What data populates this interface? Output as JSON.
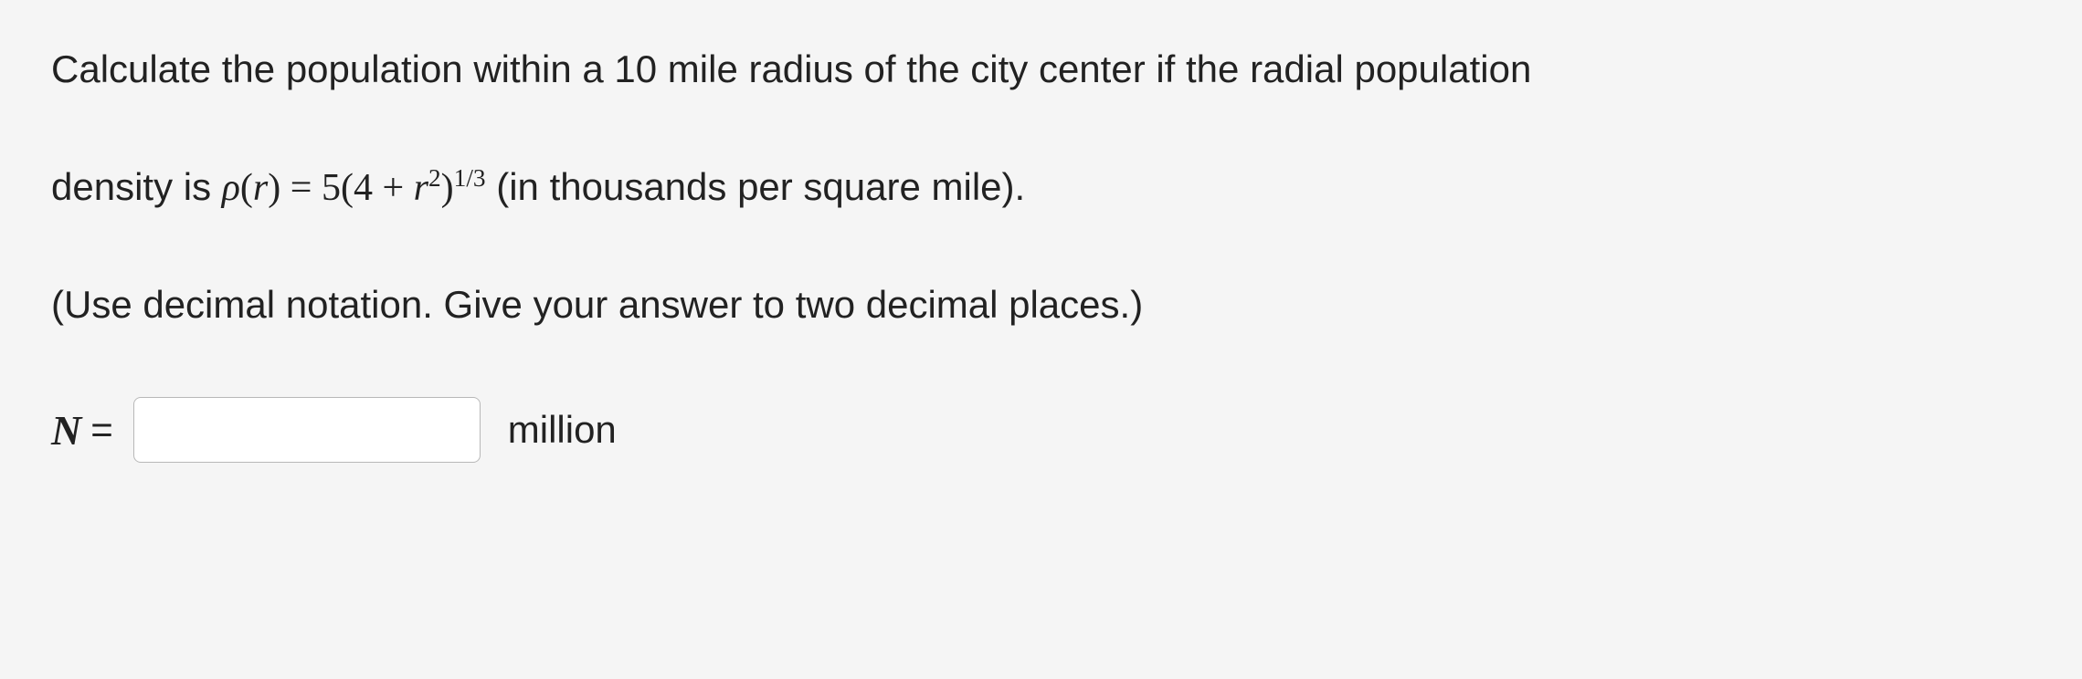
{
  "problem": {
    "line1": "Calculate the population within a 10 mile radius of the city center if the radial population",
    "line2_pre": "density is ",
    "line2_post": " (in thousands per square mile).",
    "formula": {
      "lhs_var": "ρ",
      "lhs_arg": "r",
      "eq": "=",
      "coeff": "5",
      "open": "(",
      "a": "4",
      "plus": "+",
      "r": "r",
      "r_pow": "2",
      "close": ")",
      "outer_pow": "1/3"
    },
    "line3": "(Use decimal notation. Give your answer to two decimal places.)"
  },
  "answer": {
    "var": "N",
    "equals": "=",
    "value": "",
    "unit": "million"
  }
}
